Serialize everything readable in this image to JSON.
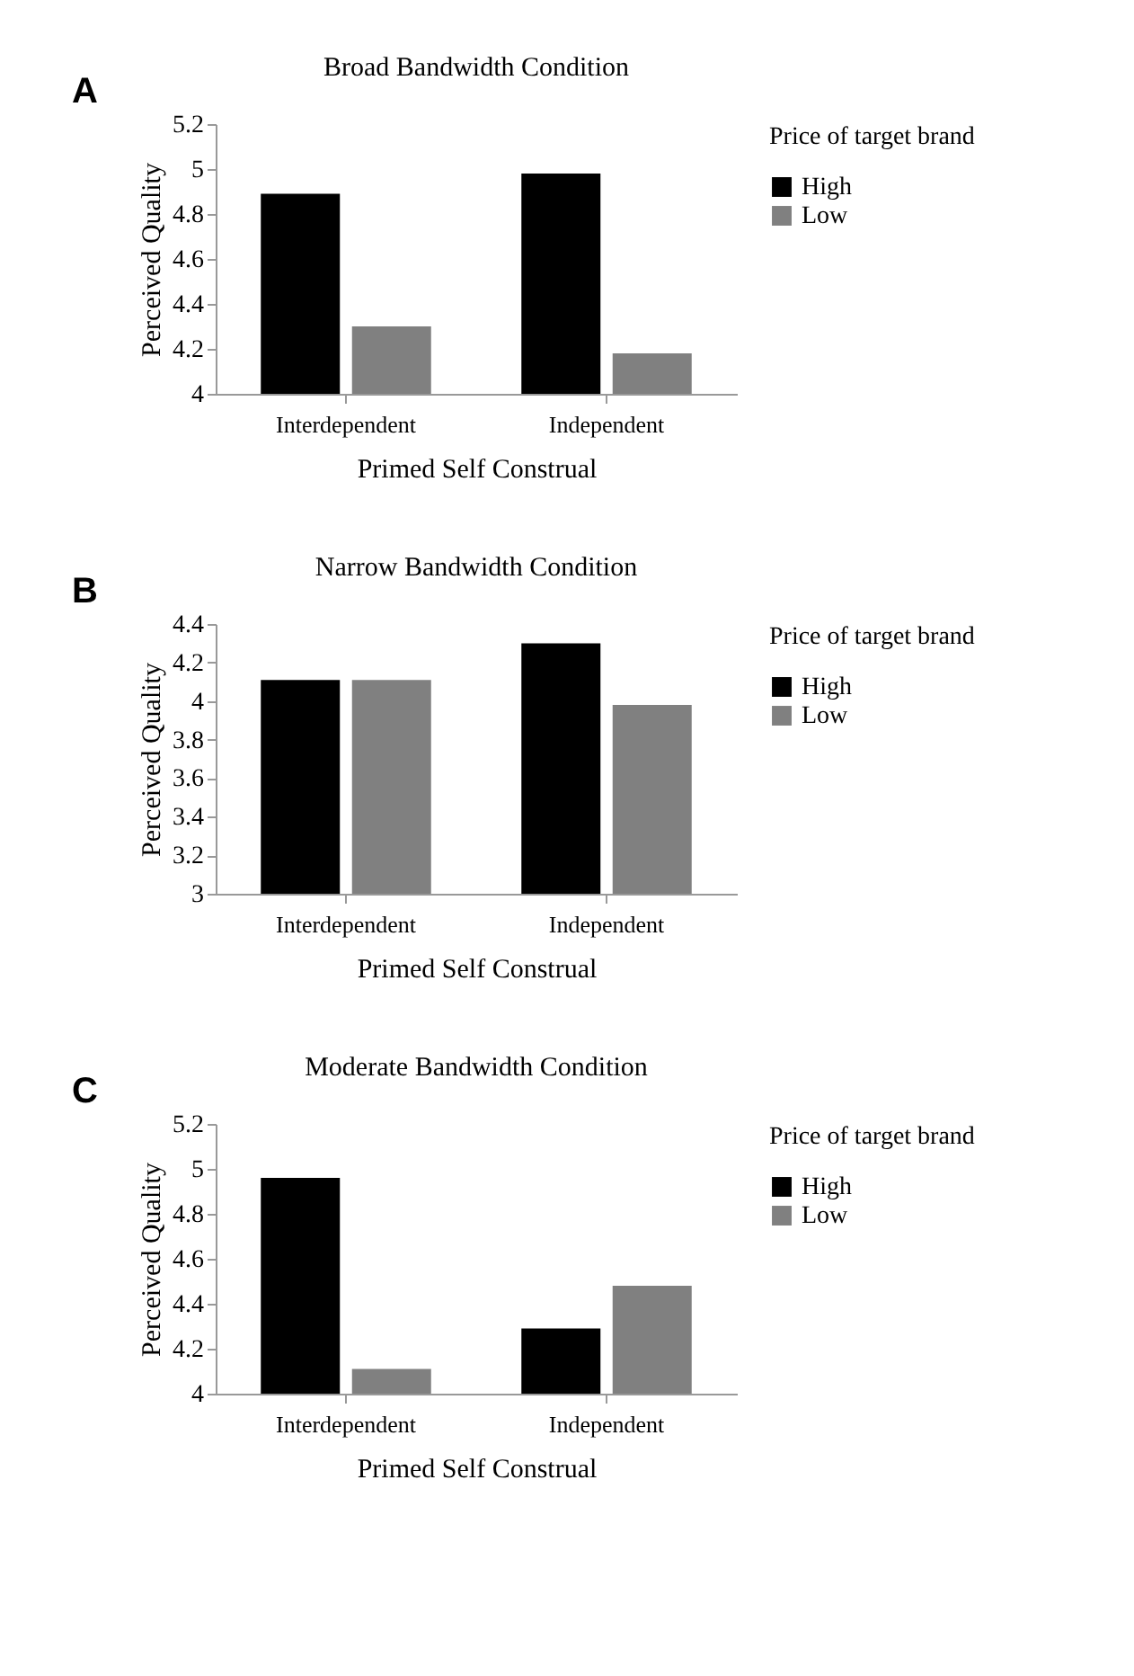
{
  "chart_data": [
    {
      "type": "bar",
      "title": "Broad Bandwidth Condition",
      "xlabel": "Primed Self Construal",
      "ylabel": "Perceived Quality",
      "legend_title": "Price of target brand",
      "legend": "right",
      "grid": false,
      "annotations": [
        "A"
      ],
      "categories": [
        "Interdependent",
        "Independent"
      ],
      "ylim": [
        4,
        5.2
      ],
      "yticks": [
        4,
        4.2,
        4.4,
        4.6,
        4.8,
        5,
        5.2
      ],
      "series": [
        {
          "name": "High",
          "color": "#000000",
          "values": [
            4.89,
            4.98
          ]
        },
        {
          "name": "Low",
          "color": "#808080",
          "values": [
            4.3,
            4.18
          ]
        }
      ]
    },
    {
      "type": "bar",
      "title": "Narrow Bandwidth Condition",
      "xlabel": "Primed Self Construal",
      "ylabel": "Perceived Quality",
      "legend_title": "Price of target brand",
      "legend": "right",
      "grid": false,
      "annotations": [
        "B"
      ],
      "categories": [
        "Interdependent",
        "Independent"
      ],
      "ylim": [
        3,
        4.4
      ],
      "yticks": [
        3,
        3.2,
        3.4,
        3.6,
        3.8,
        4,
        4.2,
        4.4
      ],
      "series": [
        {
          "name": "High",
          "color": "#000000",
          "values": [
            4.11,
            4.3
          ]
        },
        {
          "name": "Low",
          "color": "#808080",
          "values": [
            4.11,
            3.98
          ]
        }
      ]
    },
    {
      "type": "bar",
      "title": "Moderate Bandwidth Condition",
      "xlabel": "Primed Self Construal",
      "ylabel": "Perceived Quality",
      "legend_title": "Price of target brand",
      "legend": "right",
      "grid": false,
      "annotations": [
        "C"
      ],
      "categories": [
        "Interdependent",
        "Independent"
      ],
      "ylim": [
        4,
        5.2
      ],
      "yticks": [
        4,
        4.2,
        4.4,
        4.6,
        4.8,
        5,
        5.2
      ],
      "series": [
        {
          "name": "High",
          "color": "#000000",
          "values": [
            4.96,
            4.29
          ]
        },
        {
          "name": "Low",
          "color": "#808080",
          "values": [
            4.11,
            4.48
          ]
        }
      ]
    }
  ]
}
